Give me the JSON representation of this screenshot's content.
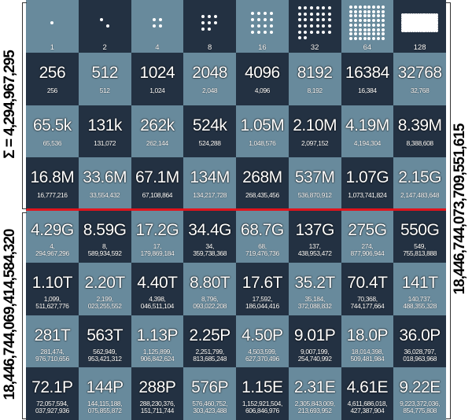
{
  "left_labels": {
    "top_sum": "Σ = 4,294,967,295",
    "bottom_sum": "18,446,744,069,414,584,320"
  },
  "right_label": "18,446,744,073,709,551,615",
  "colors": {
    "light_square": "#688a9c",
    "dark_square": "#233142",
    "divider": "#e0141c"
  },
  "first_row": [
    {
      "count": "1",
      "dots": 1
    },
    {
      "count": "2",
      "dots": 2
    },
    {
      "count": "4",
      "dots": 4
    },
    {
      "count": "8",
      "dots": 8
    },
    {
      "count": "16",
      "dots": 16
    },
    {
      "count": "32",
      "dots": 32
    },
    {
      "count": "64",
      "dots": 64
    },
    {
      "count": "128",
      "dots": 128
    }
  ],
  "rows": [
    [
      {
        "big": "256",
        "small": [
          "256"
        ]
      },
      {
        "big": "512",
        "small": [
          "512"
        ]
      },
      {
        "big": "1024",
        "small": [
          "1,024"
        ]
      },
      {
        "big": "2048",
        "small": [
          "2,048"
        ]
      },
      {
        "big": "4096",
        "small": [
          "4,096"
        ]
      },
      {
        "big": "8192",
        "small": [
          "8,192"
        ]
      },
      {
        "big": "16384",
        "small": [
          "16,384"
        ]
      },
      {
        "big": "32768",
        "small": [
          "32,768"
        ]
      }
    ],
    [
      {
        "big": "65.5k",
        "small": [
          "65,536"
        ]
      },
      {
        "big": "131k",
        "small": [
          "131,072"
        ]
      },
      {
        "big": "262k",
        "small": [
          "262,144"
        ]
      },
      {
        "big": "524k",
        "small": [
          "524,288"
        ]
      },
      {
        "big": "1.05M",
        "small": [
          "1,048,576"
        ]
      },
      {
        "big": "2.10M",
        "small": [
          "2,097,152"
        ]
      },
      {
        "big": "4.19M",
        "small": [
          "4,194,304"
        ]
      },
      {
        "big": "8.39M",
        "small": [
          "8,388,608"
        ]
      }
    ],
    [
      {
        "big": "16.8M",
        "small": [
          "16,777,216"
        ]
      },
      {
        "big": "33.6M",
        "small": [
          "33,554,432"
        ]
      },
      {
        "big": "67.1M",
        "small": [
          "67,108,864"
        ]
      },
      {
        "big": "134M",
        "small": [
          "134,217,728"
        ]
      },
      {
        "big": "268M",
        "small": [
          "268,435,456"
        ]
      },
      {
        "big": "537M",
        "small": [
          "536,870,912"
        ]
      },
      {
        "big": "1.07G",
        "small": [
          "1,073,741,824"
        ]
      },
      {
        "big": "2.15G",
        "small": [
          "2,147,483,648"
        ]
      }
    ],
    [
      {
        "big": "4.29G",
        "small": [
          "4,",
          "294,967,296"
        ]
      },
      {
        "big": "8.59G",
        "small": [
          "8,",
          "589,934,592"
        ]
      },
      {
        "big": "17.2G",
        "small": [
          "17,",
          "179,869,184"
        ]
      },
      {
        "big": "34.4G",
        "small": [
          "34,",
          "359,738,368"
        ]
      },
      {
        "big": "68.7G",
        "small": [
          "68,",
          "719,476,736"
        ]
      },
      {
        "big": "137G",
        "small": [
          "137,",
          "438,953,472"
        ]
      },
      {
        "big": "275G",
        "small": [
          "274,",
          "877,906,944"
        ]
      },
      {
        "big": "550G",
        "small": [
          "549,",
          "755,813,888"
        ]
      }
    ],
    [
      {
        "big": "1.10T",
        "small": [
          "1,099,",
          "511,627,776"
        ]
      },
      {
        "big": "2.20T",
        "small": [
          "2,199,",
          "023,255,552"
        ]
      },
      {
        "big": "4.40T",
        "small": [
          "4,398,",
          "046,511,104"
        ]
      },
      {
        "big": "8.80T",
        "small": [
          "8,796,",
          "093,022,208"
        ]
      },
      {
        "big": "17.6T",
        "small": [
          "17,592,",
          "186,044,416"
        ]
      },
      {
        "big": "35.2T",
        "small": [
          "35,184,",
          "372,088,832"
        ]
      },
      {
        "big": "70.4T",
        "small": [
          "70,368,",
          "744,177,664"
        ]
      },
      {
        "big": "141T",
        "small": [
          "140,737,",
          "488,355,328"
        ]
      }
    ],
    [
      {
        "big": "281T",
        "small": [
          "281,474,",
          "976,710,656"
        ]
      },
      {
        "big": "563T",
        "small": [
          "562,949,",
          "953,421,312"
        ]
      },
      {
        "big": "1.13P",
        "small": [
          "1,125,899,",
          "906,842,624"
        ]
      },
      {
        "big": "2.25P",
        "small": [
          "2,251,799,",
          "813,685,248"
        ]
      },
      {
        "big": "4.50P",
        "small": [
          "4,503,599,",
          "627,370,496"
        ]
      },
      {
        "big": "9.01P",
        "small": [
          "9,007,199,",
          "254,740,992"
        ]
      },
      {
        "big": "18.0P",
        "small": [
          "18,014,398,",
          "509,481,984"
        ]
      },
      {
        "big": "36.0P",
        "small": [
          "36,028,797,",
          "018,963,968"
        ]
      }
    ],
    [
      {
        "big": "72.1P",
        "small": [
          "72,057,594,",
          "037,927,936"
        ]
      },
      {
        "big": "144P",
        "small": [
          "144,115,188,",
          "075,855,872"
        ]
      },
      {
        "big": "288P",
        "small": [
          "288,230,376,",
          "151,711,744"
        ]
      },
      {
        "big": "576P",
        "small": [
          "576,460,752,",
          "303,423,488"
        ]
      },
      {
        "big": "1.15E",
        "small": [
          "1,152,921,504,",
          "606,846,976"
        ]
      },
      {
        "big": "2.31E",
        "small": [
          "2,305,843,009,",
          "213,693,952"
        ]
      },
      {
        "big": "4.61E",
        "small": [
          "4,611,686,018,",
          "427,387,904"
        ]
      },
      {
        "big": "9.22E",
        "small": [
          "9,223,372,036,",
          "854,775,808"
        ]
      }
    ]
  ]
}
